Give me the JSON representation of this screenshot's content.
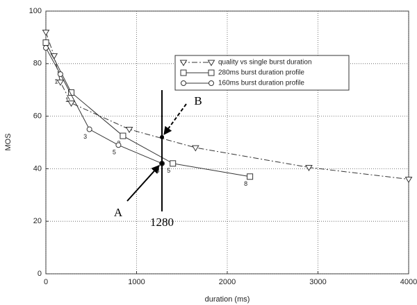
{
  "chart_data": {
    "type": "line",
    "xlabel": "duration (ms)",
    "ylabel": "MOS",
    "xlim": [
      0,
      4000
    ],
    "ylim": [
      0,
      100
    ],
    "xticks": [
      0,
      1000,
      2000,
      3000,
      4000
    ],
    "yticks": [
      0,
      20,
      40,
      60,
      80,
      100
    ],
    "grid": true,
    "legend": "upper right",
    "series": [
      {
        "name": "quality vs single burst duration",
        "color": "#333333",
        "marker": "triangle-down",
        "linestyle": "dashdot",
        "x": [
          0,
          90,
          160,
          280,
          920,
          1650,
          2900,
          4000
        ],
        "values": [
          92,
          83,
          73,
          65,
          55,
          48,
          40.5,
          36
        ],
        "marker_labels": [
          null,
          null,
          null,
          null,
          null,
          null,
          null,
          null
        ]
      },
      {
        "name": "280ms burst duration profile",
        "color": "#333333",
        "marker": "square",
        "linestyle": "solid",
        "x": [
          0,
          280,
          850,
          1400,
          2250
        ],
        "values": [
          88,
          69,
          52.5,
          42,
          37
        ],
        "marker_labels": [
          null,
          "1",
          "3",
          "5",
          "8"
        ]
      },
      {
        "name": "160ms burst duration profile",
        "color": "#333333",
        "marker": "circle",
        "linestyle": "solid",
        "x": [
          0,
          160,
          480,
          800,
          1280
        ],
        "values": [
          86,
          76,
          55,
          49,
          42
        ],
        "marker_labels": [
          null,
          "1",
          "3",
          "5",
          "8"
        ]
      }
    ],
    "marker_line": {
      "value": 1280,
      "label": "1280"
    },
    "points": [
      {
        "text": "A",
        "y": 42
      },
      {
        "text": "B",
        "y": 52
      }
    ]
  }
}
